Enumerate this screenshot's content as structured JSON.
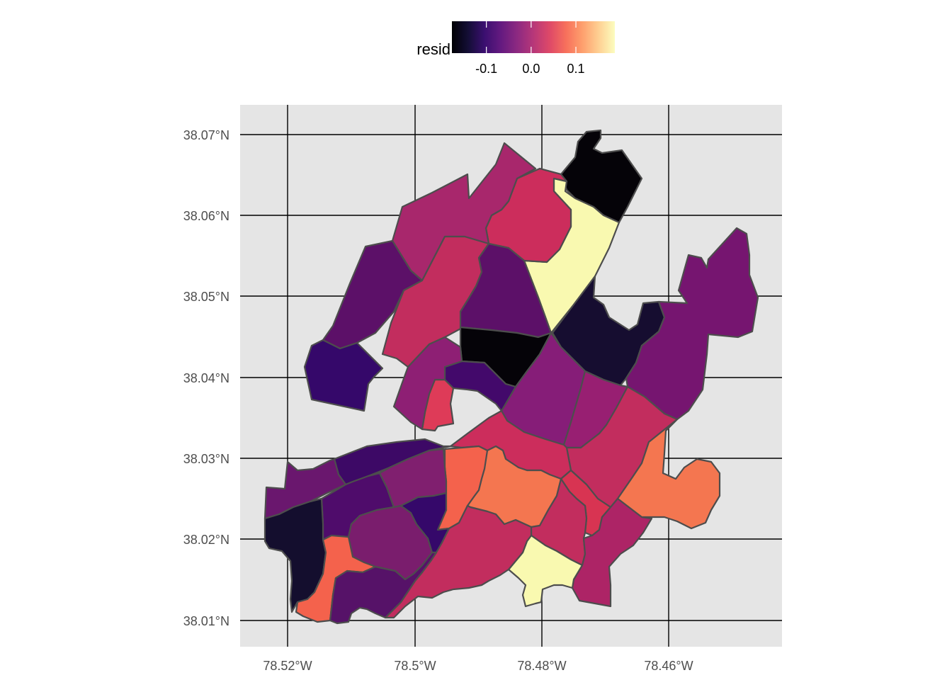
{
  "legend": {
    "title": "resid",
    "ticks": [
      {
        "value": -0.1,
        "label": "-0.1"
      },
      {
        "value": 0.0,
        "label": "0.0"
      },
      {
        "value": 0.1,
        "label": "0.1"
      }
    ],
    "range": [
      -0.177,
      0.187
    ],
    "palette": [
      "#000004",
      "#140e36",
      "#3b0f70",
      "#641a80",
      "#8c2981",
      "#b73779",
      "#de4968",
      "#f7705c",
      "#fe9f6d",
      "#fecf92",
      "#fcfdbf"
    ]
  },
  "axes": {
    "x_labels": [
      {
        "value": -78.52,
        "label": "78.52°W"
      },
      {
        "value": -78.5,
        "label": "78.5°W"
      },
      {
        "value": -78.48,
        "label": "78.48°W"
      },
      {
        "value": -78.46,
        "label": "78.46°W"
      }
    ],
    "y_labels": [
      {
        "value": 38.07,
        "label": "38.07°N"
      },
      {
        "value": 38.06,
        "label": "38.06°N"
      },
      {
        "value": 38.05,
        "label": "38.05°N"
      },
      {
        "value": 38.04,
        "label": "38.04°N"
      },
      {
        "value": 38.03,
        "label": "38.03°N"
      },
      {
        "value": 38.02,
        "label": "38.02°N"
      },
      {
        "value": 38.01,
        "label": "38.01°N"
      }
    ]
  },
  "colors": {
    "panel_background": "#e5e5e5",
    "grid": "#000000",
    "tract_border": "#4d4d4d"
  },
  "regions": [
    {
      "id": "north-tip",
      "fill": "#050308"
    },
    {
      "id": "north-yellow",
      "fill": "#f9f9b0"
    },
    {
      "id": "north-crimson",
      "fill": "#cc2d5c"
    },
    {
      "id": "northwest-magenta",
      "fill": "#a8276c"
    },
    {
      "id": "west-purple-upper",
      "fill": "#5c1068"
    },
    {
      "id": "central-crimson",
      "fill": "#c22d5e"
    },
    {
      "id": "central-purple",
      "fill": "#5c1068"
    },
    {
      "id": "central-black",
      "fill": "#050308"
    },
    {
      "id": "east-dark",
      "fill": "#160d30"
    },
    {
      "id": "far-east-purple",
      "fill": "#761570"
    },
    {
      "id": "west-indigo",
      "fill": "#35086a"
    },
    {
      "id": "center-magenta",
      "fill": "#861d78"
    },
    {
      "id": "center-small-red",
      "fill": "#de3b58"
    },
    {
      "id": "center-indigo",
      "fill": "#43096b"
    },
    {
      "id": "mid-magenta",
      "fill": "#8e1f74"
    },
    {
      "id": "mid-magenta-2",
      "fill": "#981f72"
    },
    {
      "id": "east-crimson",
      "fill": "#c22d5e"
    },
    {
      "id": "southeast-orange",
      "fill": "#f47650"
    },
    {
      "id": "south-crimson",
      "fill": "#cc2d5c"
    },
    {
      "id": "south-orange-a",
      "fill": "#f4624c"
    },
    {
      "id": "south-orange-b",
      "fill": "#f47650"
    },
    {
      "id": "south-red-a",
      "fill": "#d83452"
    },
    {
      "id": "south-red-b",
      "fill": "#c22d5e"
    },
    {
      "id": "south-magenta-right",
      "fill": "#ad2466"
    },
    {
      "id": "south-yellow",
      "fill": "#f9f9b0"
    },
    {
      "id": "southwest-indigo-top",
      "fill": "#3d0966"
    },
    {
      "id": "west-purple-lower",
      "fill": "#6a176e"
    },
    {
      "id": "sw-purple-a",
      "fill": "#4f0c6b"
    },
    {
      "id": "sw-magenta",
      "fill": "#801f6f"
    },
    {
      "id": "sw-magenta-b",
      "fill": "#7a1d6d"
    },
    {
      "id": "sw-indigo-small",
      "fill": "#35086a"
    },
    {
      "id": "south-crimson-long",
      "fill": "#c22d5e"
    },
    {
      "id": "sw-dark",
      "fill": "#140e2e"
    },
    {
      "id": "sw-orange",
      "fill": "#f4624c"
    },
    {
      "id": "sw-purple-bottom",
      "fill": "#561268"
    },
    {
      "id": "sw-purple-bottom-2",
      "fill": "#4e0c64"
    }
  ]
}
